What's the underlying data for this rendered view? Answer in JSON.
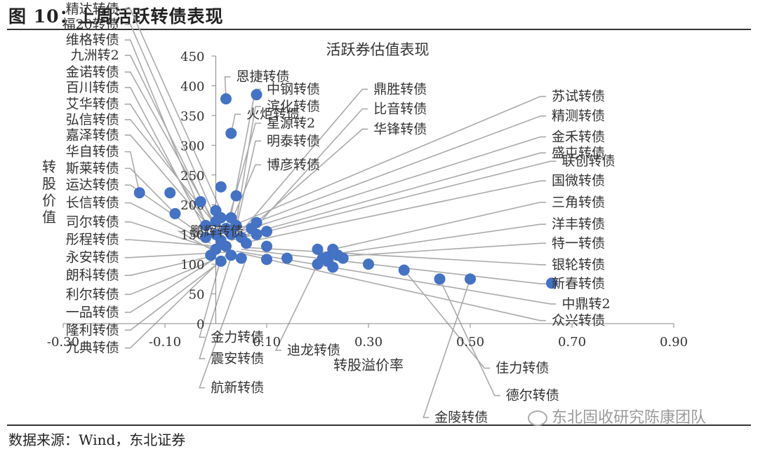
{
  "figure": {
    "title": "图 10：上周活跃转债表现",
    "source": "数据来源：Wind，东北证券",
    "watermark": "东北固收研究陈康团队"
  },
  "chart_data": {
    "type": "scatter",
    "title": "活跃券估值表现",
    "xlabel": "转股溢价率",
    "ylabel": "转股价值",
    "xlim": [
      -0.3,
      0.9
    ],
    "ylim": [
      0,
      450
    ],
    "xticks": [
      "-0.30",
      "-0.10",
      "0.10",
      "0.30",
      "0.50",
      "0.70",
      "0.90"
    ],
    "yticks": [
      "0",
      "50",
      "100",
      "150",
      "200",
      "250",
      "300",
      "350",
      "400",
      "450"
    ],
    "color": "#4472C4",
    "points": [
      {
        "x": 0.02,
        "y": 378
      },
      {
        "x": 0.08,
        "y": 385
      },
      {
        "x": 0.03,
        "y": 320
      },
      {
        "x": 0.01,
        "y": 230
      },
      {
        "x": 0.04,
        "y": 215
      },
      {
        "x": -0.15,
        "y": 220
      },
      {
        "x": -0.09,
        "y": 220
      },
      {
        "x": -0.08,
        "y": 185
      },
      {
        "x": -0.03,
        "y": 205
      },
      {
        "x": 0.0,
        "y": 190
      },
      {
        "x": 0.01,
        "y": 178
      },
      {
        "x": -0.02,
        "y": 165
      },
      {
        "x": 0.0,
        "y": 172
      },
      {
        "x": 0.03,
        "y": 178
      },
      {
        "x": 0.02,
        "y": 160
      },
      {
        "x": 0.04,
        "y": 165
      },
      {
        "x": 0.0,
        "y": 150
      },
      {
        "x": -0.02,
        "y": 145
      },
      {
        "x": 0.01,
        "y": 140
      },
      {
        "x": 0.03,
        "y": 150
      },
      {
        "x": 0.05,
        "y": 145
      },
      {
        "x": 0.08,
        "y": 150
      },
      {
        "x": 0.1,
        "y": 155
      },
      {
        "x": 0.08,
        "y": 170
      },
      {
        "x": 0.07,
        "y": 160
      },
      {
        "x": 0.06,
        "y": 135
      },
      {
        "x": 0.02,
        "y": 130
      },
      {
        "x": 0.0,
        "y": 125
      },
      {
        "x": -0.01,
        "y": 115
      },
      {
        "x": 0.01,
        "y": 105
      },
      {
        "x": 0.03,
        "y": 115
      },
      {
        "x": 0.05,
        "y": 110
      },
      {
        "x": 0.1,
        "y": 130
      },
      {
        "x": 0.1,
        "y": 108
      },
      {
        "x": 0.14,
        "y": 110
      },
      {
        "x": 0.23,
        "y": 125
      },
      {
        "x": 0.23,
        "y": 118
      },
      {
        "x": 0.25,
        "y": 110
      },
      {
        "x": 0.2,
        "y": 125
      },
      {
        "x": 0.21,
        "y": 110
      },
      {
        "x": 0.24,
        "y": 115
      },
      {
        "x": 0.22,
        "y": 112
      },
      {
        "x": 0.23,
        "y": 95
      },
      {
        "x": 0.2,
        "y": 100
      },
      {
        "x": 0.22,
        "y": 105
      },
      {
        "x": 0.3,
        "y": 100
      },
      {
        "x": 0.37,
        "y": 90
      },
      {
        "x": 0.44,
        "y": 75
      },
      {
        "x": 0.5,
        "y": 75
      },
      {
        "x": 0.66,
        "y": 68
      }
    ],
    "labels": [
      {
        "text": "精达转债",
        "side": "left",
        "lx": -0.19,
        "ly": 522,
        "tx": 0.01,
        "ty": 190
      },
      {
        "text": "福20转债",
        "side": "left",
        "lx": -0.19,
        "ly": 496,
        "tx": 0.0,
        "ty": 175
      },
      {
        "text": "维格转债",
        "side": "left",
        "lx": -0.19,
        "ly": 470,
        "tx": -0.02,
        "ty": 168
      },
      {
        "text": "九洲转2",
        "side": "left",
        "lx": -0.19,
        "ly": 444,
        "tx": 0.0,
        "ty": 160
      },
      {
        "text": "金诺转债",
        "side": "left",
        "lx": -0.19,
        "ly": 416,
        "tx": 0.01,
        "ty": 150
      },
      {
        "text": "百川转债",
        "side": "left",
        "lx": -0.19,
        "ly": 390,
        "tx": -0.01,
        "ty": 140
      },
      {
        "text": "艾华转债",
        "side": "left",
        "lx": -0.19,
        "ly": 362,
        "tx": 0.0,
        "ty": 145
      },
      {
        "text": "弘信转债",
        "side": "left",
        "lx": -0.19,
        "ly": 336,
        "tx": 0.01,
        "ty": 155
      },
      {
        "text": "嘉泽转债",
        "side": "left",
        "lx": -0.19,
        "ly": 310,
        "tx": 0.0,
        "ty": 150
      },
      {
        "text": "华自转债",
        "side": "left",
        "lx": -0.19,
        "ly": 282,
        "tx": -0.15,
        "ty": 220
      },
      {
        "text": "斯莱转债",
        "side": "left",
        "lx": -0.19,
        "ly": 254,
        "tx": -0.08,
        "ty": 185
      },
      {
        "text": "运达转债",
        "side": "left",
        "lx": -0.19,
        "ly": 226,
        "tx": -0.02,
        "ty": 145
      },
      {
        "text": "长信转债",
        "side": "left",
        "lx": -0.19,
        "ly": 196,
        "tx": -0.01,
        "ty": 135
      },
      {
        "text": "司尔转债",
        "side": "left",
        "lx": -0.19,
        "ly": 164,
        "tx": 0.0,
        "ty": 125
      },
      {
        "text": "彤程转债",
        "side": "left",
        "lx": -0.19,
        "ly": 134,
        "tx": 0.01,
        "ty": 130
      },
      {
        "text": "永安转债",
        "side": "left",
        "lx": -0.19,
        "ly": 104,
        "tx": 0.02,
        "ty": 120
      },
      {
        "text": "朗科转债",
        "side": "left",
        "lx": -0.19,
        "ly": 74,
        "tx": 0.0,
        "ty": 115
      },
      {
        "text": "利尔转债",
        "side": "left",
        "lx": -0.19,
        "ly": 42,
        "tx": -0.01,
        "ty": 105
      },
      {
        "text": "一品转债",
        "side": "left",
        "lx": -0.19,
        "ly": 12,
        "tx": 0.0,
        "ty": 110
      },
      {
        "text": "隆利转债",
        "side": "left",
        "lx": -0.19,
        "ly": -18,
        "tx": 0.01,
        "ty": 105
      },
      {
        "text": "九典转债",
        "side": "left",
        "lx": -0.19,
        "ly": -48,
        "tx": 0.02,
        "ty": 115
      },
      {
        "text": "恩捷转债",
        "side": "right",
        "lx": 0.04,
        "ly": 408,
        "tx": 0.02,
        "ty": 378
      },
      {
        "text": "火炬转债",
        "side": "right",
        "lx": 0.06,
        "ly": 345,
        "tx": 0.03,
        "ty": 320
      },
      {
        "text": "中钢转债",
        "side": "right",
        "lx": 0.1,
        "ly": 387,
        "tx": 0.03,
        "ty": 182
      },
      {
        "text": "滨化转债",
        "side": "right",
        "lx": 0.1,
        "ly": 358,
        "tx": 0.04,
        "ty": 170
      },
      {
        "text": "星源转2",
        "side": "right",
        "lx": 0.1,
        "ly": 330,
        "tx": 0.02,
        "ty": 160
      },
      {
        "text": "明泰转债",
        "side": "right",
        "lx": 0.1,
        "ly": 300,
        "tx": 0.04,
        "ty": 160
      },
      {
        "text": "博彦转债",
        "side": "right",
        "lx": 0.1,
        "ly": 260,
        "tx": 0.02,
        "ty": 150
      },
      {
        "text": "鼎胜转债",
        "side": "right",
        "lx": 0.31,
        "ly": 387,
        "tx": 0.05,
        "ty": 155
      },
      {
        "text": "比音转债",
        "side": "right",
        "lx": 0.31,
        "ly": 354,
        "tx": 0.06,
        "ty": 145
      },
      {
        "text": "华锋转债",
        "side": "right",
        "lx": 0.31,
        "ly": 320,
        "tx": 0.04,
        "ty": 140
      },
      {
        "text": "苏试转债",
        "side": "right",
        "lx": 0.66,
        "ly": 375,
        "tx": 0.02,
        "ty": 160
      },
      {
        "text": "精测转债",
        "side": "right",
        "lx": 0.66,
        "ly": 342,
        "tx": 0.03,
        "ty": 155
      },
      {
        "text": "金禾转债",
        "side": "right",
        "lx": 0.66,
        "ly": 307,
        "tx": 0.03,
        "ty": 150
      },
      {
        "text": "盛屯转债",
        "side": "right",
        "lx": 0.66,
        "ly": 280,
        "tx": 0.04,
        "ty": 145
      },
      {
        "text": "联创转债",
        "side": "right",
        "lx": 0.68,
        "ly": 266,
        "tx": 0.03,
        "ty": 140
      },
      {
        "text": "国微转债",
        "side": "right",
        "lx": 0.66,
        "ly": 233,
        "tx": 0.05,
        "ty": 135
      },
      {
        "text": "三角转债",
        "side": "right",
        "lx": 0.66,
        "ly": 197,
        "tx": 0.23,
        "ty": 125
      },
      {
        "text": "洋丰转债",
        "side": "right",
        "lx": 0.66,
        "ly": 160,
        "tx": 0.24,
        "ty": 118
      },
      {
        "text": "特一转债",
        "side": "right",
        "lx": 0.66,
        "ly": 128,
        "tx": 0.22,
        "ty": 112
      },
      {
        "text": "银轮转债",
        "side": "right",
        "lx": 0.66,
        "ly": 92,
        "tx": 0.06,
        "ty": 128
      },
      {
        "text": "新春转债",
        "side": "right",
        "lx": 0.66,
        "ly": 60,
        "tx": 0.05,
        "ty": 125
      },
      {
        "text": "中鼎转2",
        "side": "right",
        "lx": 0.68,
        "ly": 26,
        "tx": 0.04,
        "ty": 122
      },
      {
        "text": "众兴转债",
        "side": "right",
        "lx": 0.66,
        "ly": -2,
        "tx": 0.05,
        "ty": 118
      },
      {
        "text": "金力转债",
        "side": "right",
        "lx": -0.01,
        "ly": -30,
        "tx": 0.01,
        "ty": 110
      },
      {
        "text": "震安转债",
        "side": "right",
        "lx": -0.01,
        "ly": -66,
        "tx": 0.03,
        "ty": 112
      },
      {
        "text": "航新转债",
        "side": "right",
        "lx": -0.01,
        "ly": -115,
        "tx": 0.06,
        "ty": 110
      },
      {
        "text": "迪龙转债",
        "side": "right",
        "lx": 0.14,
        "ly": -52,
        "tx": 0.2,
        "ty": 100
      },
      {
        "text": "佳力转债",
        "side": "right",
        "lx": 0.55,
        "ly": -82,
        "tx": 0.37,
        "ty": 90
      },
      {
        "text": "德尔转债",
        "side": "right",
        "lx": 0.57,
        "ly": -128,
        "tx": 0.44,
        "ty": 75
      },
      {
        "text": "金陵转债",
        "side": "right",
        "lx": 0.43,
        "ly": -165,
        "tx": 0.5,
        "ty": 75
      },
      {
        "text": "鹏辉转债",
        "side": "right",
        "lx": -0.05,
        "ly": 148,
        "tx": 0.0,
        "ty": 120
      }
    ]
  }
}
